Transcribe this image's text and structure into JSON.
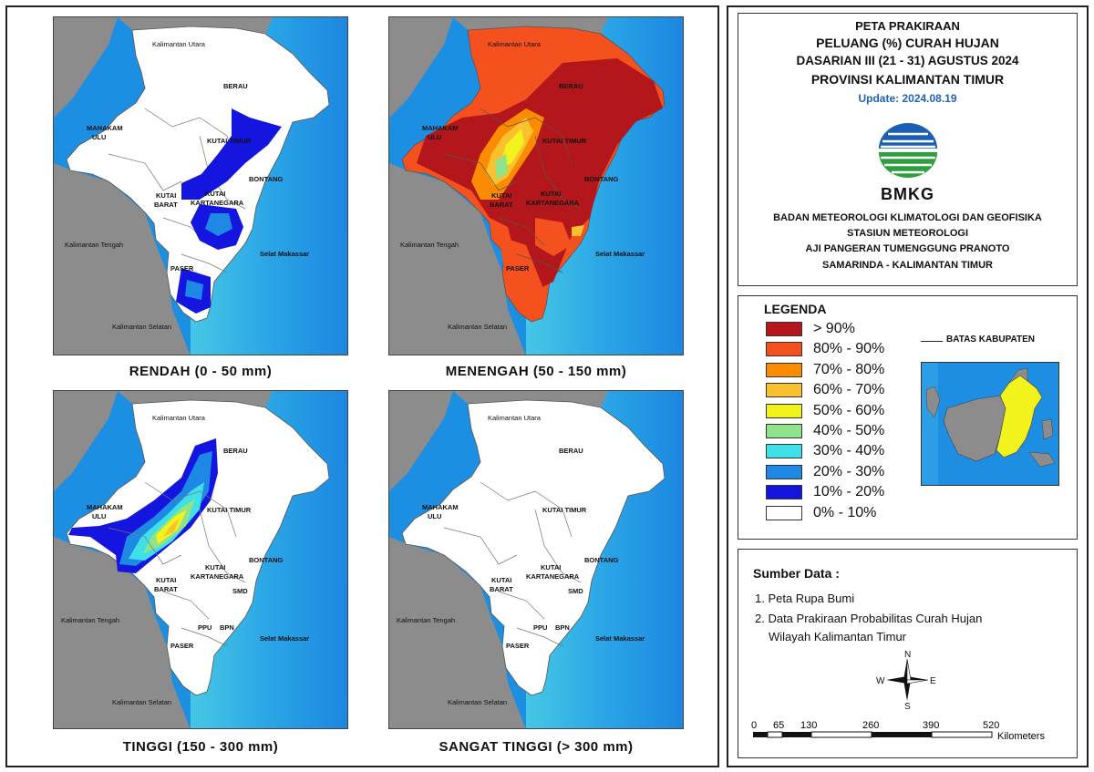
{
  "maps": [
    {
      "title": "RENDAH (0 - 50 mm)"
    },
    {
      "title": "MENENGAH (50 - 150 mm)"
    },
    {
      "title": "TINGGI (150 - 300 mm)"
    },
    {
      "title": "SANGAT TINGGI (> 300 mm)"
    }
  ],
  "map_labels": {
    "kaltara": "Kalimantan Utara",
    "kalteng": "Kalimantan Tengah",
    "kalsel": "Kalimantan Selatan",
    "makassar": "Selat Makassar",
    "berau": "BERAU",
    "mahakam1": "MAHAKAM",
    "mahakam2": "ULU",
    "kutim": "KUTAI TIMUR",
    "bontang": "BONTANG",
    "kubar1": "KUTAI",
    "kubar2": "BARAT",
    "kukar1": "KUTAI",
    "kukar2": "KARTANEGARA",
    "smd": "SMD",
    "ppu": "PPU",
    "bpn": "BPN",
    "paser": "PASER"
  },
  "header": {
    "title_line1": "PETA PRAKIRAAN",
    "title_line2": "PELUANG (%) CURAH HUJAN",
    "title_line3": "DASARIAN III (21 - 31) AGUSTUS 2024",
    "title_line4": "PROVINSI KALIMANTAN TIMUR",
    "update": "Update: 2024.08.19",
    "logo_text": "BMKG",
    "org_line1": "BADAN METEOROLOGI KLIMATOLOGI DAN GEOFISIKA",
    "org_line2": "STASIUN METEOROLOGI",
    "org_line3": "AJI PANGERAN TUMENGGUNG PRANOTO",
    "org_line4": "SAMARINDA - KALIMANTAN TIMUR"
  },
  "legend": {
    "title": "LEGENDA",
    "boundary_label": "BATAS KABUPATEN",
    "items": [
      {
        "label": "> 90%",
        "color": "#b3171b"
      },
      {
        "label": "80% - 90%",
        "color": "#f4511e"
      },
      {
        "label": "70% - 80%",
        "color": "#fb8c00"
      },
      {
        "label": "60% - 70%",
        "color": "#fbc02d"
      },
      {
        "label": "50% - 60%",
        "color": "#f2f21c"
      },
      {
        "label": "40% - 50%",
        "color": "#8fe38a"
      },
      {
        "label": "30% - 40%",
        "color": "#3fe0e8"
      },
      {
        "label": "20% - 30%",
        "color": "#1e88e5"
      },
      {
        "label": "10% - 20%",
        "color": "#1515e0"
      },
      {
        "label": "0% - 10%",
        "color": "#ffffff"
      }
    ]
  },
  "sources": {
    "title": "Sumber Data :",
    "item1": "1. Peta Rupa Bumi",
    "item2a": "2. Data Prakiraan Probabilitas Curah Hujan",
    "item2b": "Wilayah Kalimantan Timur"
  },
  "compass": {
    "n": "N",
    "s": "S",
    "e": "E",
    "w": "W"
  },
  "scale": {
    "ticks": [
      "0",
      "65",
      "130",
      "260",
      "390",
      "520"
    ],
    "unit": "Kilometers"
  },
  "colors": {
    "sea_deep": "#1d86e0",
    "sea_shallow": "#33b6e8",
    "neighbor_land": "#8c8c8c",
    "province": "#ffffff"
  }
}
